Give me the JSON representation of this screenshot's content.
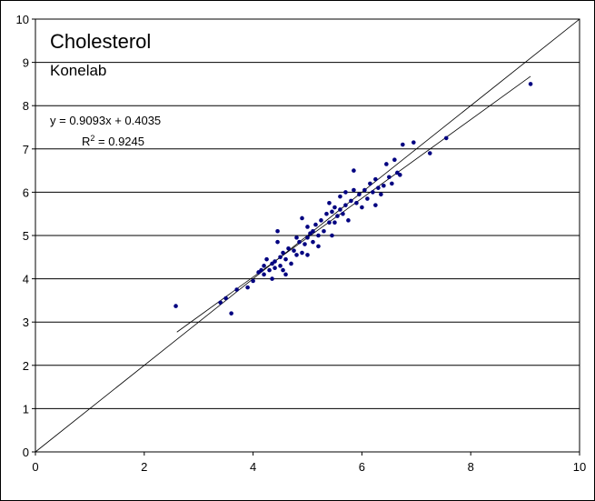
{
  "chart_data": {
    "type": "scatter",
    "title": "Cholesterol",
    "subtitle": "Konelab",
    "xlabel": "",
    "ylabel": "",
    "xlim": [
      0,
      10
    ],
    "ylim": [
      0,
      10
    ],
    "x_ticks": [
      "0",
      "2",
      "4",
      "6",
      "8",
      "10"
    ],
    "y_ticks": [
      "0",
      "1",
      "2",
      "3",
      "4",
      "5",
      "6",
      "7",
      "8",
      "9",
      "10"
    ],
    "grid": "horizontal",
    "point_color": "#000080",
    "regression": {
      "slope": 0.9093,
      "intercept": 0.4035,
      "x_range": [
        2.6,
        9.1
      ],
      "equation": "y = 0.9093x + 0.4035",
      "r2_prefix": "R",
      "r2_sup": "2",
      "r2_suffix": " = 0.9245"
    },
    "identity_line": true,
    "points": [
      [
        2.58,
        3.37
      ],
      [
        3.4,
        3.45
      ],
      [
        3.5,
        3.55
      ],
      [
        3.6,
        3.2
      ],
      [
        3.7,
        3.75
      ],
      [
        3.9,
        3.8
      ],
      [
        4.0,
        3.95
      ],
      [
        4.1,
        4.15
      ],
      [
        4.15,
        4.2
      ],
      [
        4.2,
        4.3
      ],
      [
        4.2,
        4.1
      ],
      [
        4.25,
        4.45
      ],
      [
        4.3,
        4.2
      ],
      [
        4.35,
        4.35
      ],
      [
        4.35,
        4.0
      ],
      [
        4.4,
        4.4
      ],
      [
        4.4,
        4.25
      ],
      [
        4.45,
        5.1
      ],
      [
        4.45,
        4.85
      ],
      [
        4.5,
        4.5
      ],
      [
        4.5,
        4.3
      ],
      [
        4.55,
        4.6
      ],
      [
        4.55,
        4.2
      ],
      [
        4.6,
        4.45
      ],
      [
        4.6,
        4.1
      ],
      [
        4.65,
        4.7
      ],
      [
        4.7,
        4.35
      ],
      [
        4.75,
        4.65
      ],
      [
        4.8,
        4.95
      ],
      [
        4.8,
        4.55
      ],
      [
        4.85,
        4.85
      ],
      [
        4.9,
        5.4
      ],
      [
        4.9,
        4.6
      ],
      [
        4.95,
        4.8
      ],
      [
        5.0,
        5.2
      ],
      [
        5.0,
        4.95
      ],
      [
        5.0,
        4.55
      ],
      [
        5.05,
        5.05
      ],
      [
        5.1,
        5.1
      ],
      [
        5.1,
        4.85
      ],
      [
        5.15,
        5.25
      ],
      [
        5.2,
        5.0
      ],
      [
        5.2,
        4.75
      ],
      [
        5.25,
        5.35
      ],
      [
        5.3,
        5.1
      ],
      [
        5.35,
        5.5
      ],
      [
        5.4,
        5.75
      ],
      [
        5.4,
        5.3
      ],
      [
        5.45,
        5.55
      ],
      [
        5.45,
        5.0
      ],
      [
        5.5,
        5.65
      ],
      [
        5.5,
        5.3
      ],
      [
        5.55,
        5.45
      ],
      [
        5.6,
        5.9
      ],
      [
        5.6,
        5.6
      ],
      [
        5.65,
        5.5
      ],
      [
        5.7,
        6.0
      ],
      [
        5.7,
        5.7
      ],
      [
        5.75,
        5.35
      ],
      [
        5.8,
        5.8
      ],
      [
        5.85,
        6.5
      ],
      [
        5.85,
        6.05
      ],
      [
        5.9,
        5.75
      ],
      [
        5.95,
        5.95
      ],
      [
        6.0,
        5.65
      ],
      [
        6.05,
        6.05
      ],
      [
        6.1,
        5.85
      ],
      [
        6.15,
        6.2
      ],
      [
        6.2,
        6.0
      ],
      [
        6.25,
        6.3
      ],
      [
        6.25,
        5.7
      ],
      [
        6.3,
        6.1
      ],
      [
        6.35,
        5.95
      ],
      [
        6.4,
        6.15
      ],
      [
        6.45,
        6.65
      ],
      [
        6.5,
        6.35
      ],
      [
        6.55,
        6.2
      ],
      [
        6.6,
        6.75
      ],
      [
        6.65,
        6.45
      ],
      [
        6.7,
        6.4
      ],
      [
        6.75,
        7.1
      ],
      [
        6.95,
        7.15
      ],
      [
        7.25,
        6.9
      ],
      [
        7.55,
        7.25
      ],
      [
        9.1,
        8.5
      ]
    ]
  }
}
